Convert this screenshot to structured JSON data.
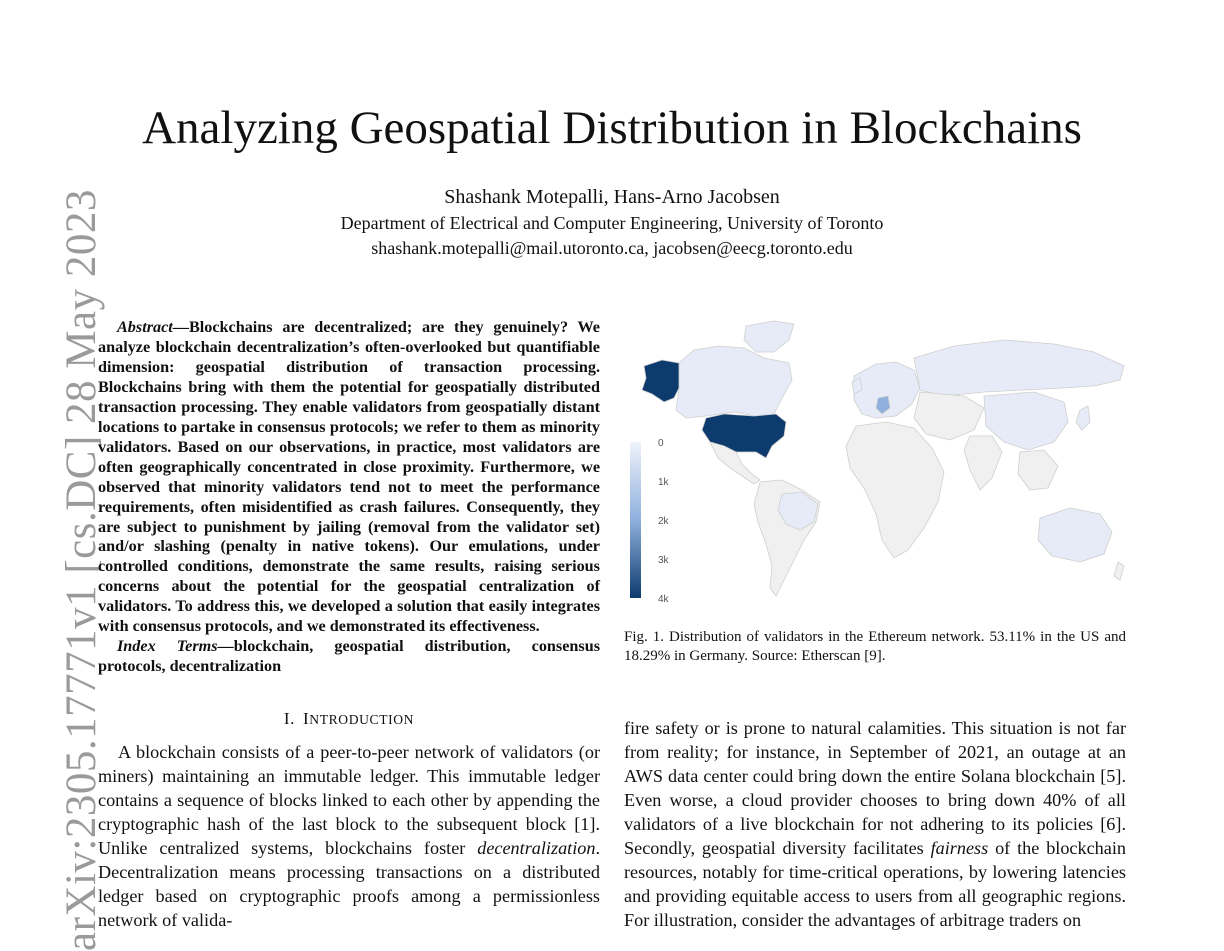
{
  "arxiv_stamp": "arXiv:2305.17771v1  [cs.DC]  28 May 2023",
  "title": "Analyzing Geospatial Distribution in Blockchains",
  "authors": "Shashank Motepalli, Hans-Arno Jacobsen",
  "affiliation": "Department of Electrical and Computer Engineering, University of Toronto",
  "emails": "shashank.motepalli@mail.utoronto.ca, jacobsen@eecg.toronto.edu",
  "abstract": {
    "lead": "Abstract",
    "text": "—Blockchains are decentralized; are they genuinely? We analyze blockchain decentralization’s often-overlooked but quantifiable dimension: geospatial distribution of transaction processing. Blockchains bring with them the potential for geospa­tially distributed transaction processing. They enable validators from geospatially distant locations to partake in consensus protocols; we refer to them as minority validators. Based on our observations, in practice, most validators are often geographically concentrated in close proximity. Furthermore, we observed that minority validators tend not to meet the performance require­ments, often misidentified as crash failures. Consequently, they are subject to punishment by jailing (removal from the validator set) and/or slashing (penalty in native tokens). Our emulations, under controlled conditions, demonstrate the same results, raising serious concerns about the potential for the geospatial centraliza­tion of validators. To address this, we developed a solution that easily integrates with consensus protocols, and we demonstrated its effectiveness."
  },
  "index_terms": {
    "lead": "Index Terms",
    "text": "—blockchain, geospatial distribution, consensus protocols, decentralization"
  },
  "section": {
    "number": "I.",
    "first_letter": "I",
    "rest": "NTRODUCTION"
  },
  "intro_paragraph": {
    "part1": "A blockchain consists of a peer-to-peer network of val­idators (or miners) maintaining an immutable ledger. This immutable ledger contains a sequence of blocks linked to each other by appending the cryptographic hash of the last block to the subsequent block [1]. Unlike centralized systems, blockchains foster ",
    "emph": "decentralization",
    "part2": ". Decentralization means processing transactions on a distributed ledger based on cryp­tographic proofs among a permissionless network of valida-"
  },
  "figure": {
    "legend_ticks": [
      "0",
      "1k",
      "2k",
      "3k",
      "4k"
    ],
    "colors": {
      "high": "#0d3b6e",
      "mid": "#8fb0dd",
      "low": "#e6ebf7",
      "none": "#f0f0f0",
      "border": "#cfcfcf"
    },
    "caption": "Fig. 1.  Distribution of validators in the Ethereum network. 53.11% in the US and 18.29% in Germany. Source: Etherscan [9]."
  },
  "right_paragraph": {
    "part1": "fire safety or is prone to natural calamities. This situation is not far from reality; for instance, in September of 2021, an outage at an AWS data center could bring down the entire Solana blockchain [5]. Even worse, a cloud provider chooses to bring down 40% of all validators of a live blockchain for not adhering to its policies [6]. Secondly, geospatial diversity facilitates ",
    "emph": "fairness",
    "part2": " of the blockchain resources, notably for time-critical operations, by lowering latencies and providing equitable access to users from all geographic regions. For illustration, consider the advantages of arbitrage traders on"
  }
}
